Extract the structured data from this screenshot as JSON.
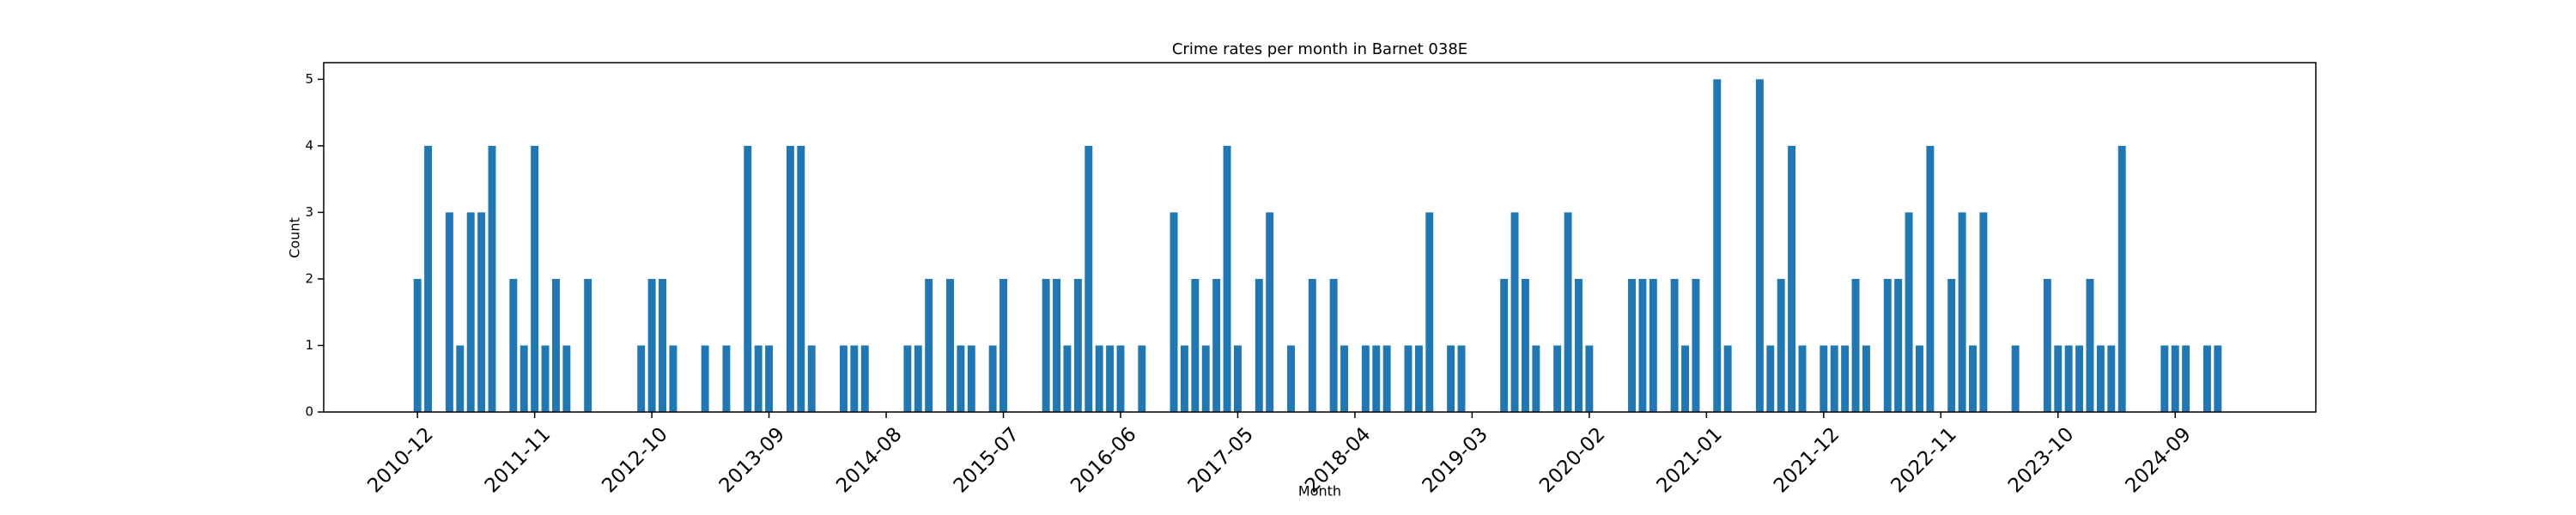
{
  "chart_data": {
    "type": "bar",
    "title": "Crime rates per month in Barnet 038E",
    "xlabel": "Month",
    "ylabel": "Count",
    "color": "#1f77b4",
    "grid": false,
    "categories": [
      "2010-12",
      null,
      null,
      null,
      null,
      null,
      null,
      null,
      null,
      null,
      null,
      "2011-11",
      null,
      null,
      null,
      null,
      null,
      null,
      null,
      null,
      null,
      null,
      "2012-10",
      null,
      null,
      null,
      null,
      null,
      null,
      null,
      null,
      null,
      null,
      "2013-09",
      null,
      null,
      null,
      null,
      null,
      null,
      null,
      null,
      null,
      null,
      "2014-08",
      null,
      null,
      null,
      null,
      null,
      null,
      null,
      null,
      null,
      null,
      "2015-07",
      null,
      null,
      null,
      null,
      null,
      null,
      null,
      null,
      null,
      null,
      "2016-06",
      null,
      null,
      null,
      null,
      null,
      null,
      null,
      null,
      null,
      null,
      "2017-05",
      null,
      null,
      null,
      null,
      null,
      null,
      null,
      null,
      null,
      null,
      "2018-04",
      null,
      null,
      null,
      null,
      null,
      null,
      null,
      null,
      null,
      null,
      "2019-03",
      null,
      null,
      null,
      null,
      null,
      null,
      null,
      null,
      null,
      null,
      "2020-02",
      null,
      null,
      null,
      null,
      null,
      null,
      null,
      null,
      null,
      null,
      "2021-01",
      null,
      null,
      null,
      null,
      null,
      null,
      null,
      null,
      null,
      null,
      "2021-12",
      null,
      null,
      null,
      null,
      null,
      null,
      null,
      null,
      null,
      null,
      "2022-11",
      null,
      null,
      null,
      null,
      null,
      null,
      null,
      null,
      null,
      null,
      "2023-10",
      null,
      null,
      null,
      null,
      null,
      null,
      null,
      null,
      null,
      null,
      "2024-09",
      null,
      null,
      null,
      null
    ],
    "values": [
      2,
      4,
      0,
      3,
      1,
      3,
      3,
      4,
      0,
      2,
      1,
      4,
      1,
      2,
      1,
      0,
      2,
      0,
      0,
      0,
      0,
      1,
      2,
      2,
      1,
      0,
      0,
      1,
      0,
      1,
      0,
      4,
      1,
      1,
      0,
      4,
      4,
      1,
      0,
      0,
      1,
      1,
      1,
      0,
      0,
      0,
      1,
      1,
      2,
      0,
      2,
      1,
      1,
      0,
      1,
      2,
      0,
      0,
      0,
      2,
      2,
      1,
      2,
      4,
      1,
      1,
      1,
      0,
      1,
      0,
      0,
      3,
      1,
      2,
      1,
      2,
      4,
      1,
      0,
      2,
      3,
      0,
      1,
      0,
      2,
      0,
      2,
      1,
      0,
      1,
      1,
      1,
      0,
      1,
      1,
      3,
      0,
      1,
      1,
      0,
      0,
      0,
      2,
      3,
      2,
      1,
      0,
      1,
      3,
      2,
      1,
      0,
      0,
      0,
      2,
      2,
      2,
      0,
      2,
      1,
      2,
      0,
      5,
      1,
      0,
      0,
      5,
      1,
      2,
      4,
      1,
      0,
      1,
      1,
      1,
      2,
      1,
      0,
      2,
      2,
      3,
      1,
      4,
      0,
      2,
      3,
      1,
      3,
      0,
      0,
      1,
      0,
      0,
      2,
      1,
      1,
      1,
      2,
      1,
      1,
      4,
      0,
      0,
      0,
      1,
      1,
      1,
      0,
      1,
      1
    ],
    "ylim": [
      0,
      5.25
    ],
    "yticks": [
      0,
      1,
      2,
      3,
      4,
      5
    ]
  }
}
